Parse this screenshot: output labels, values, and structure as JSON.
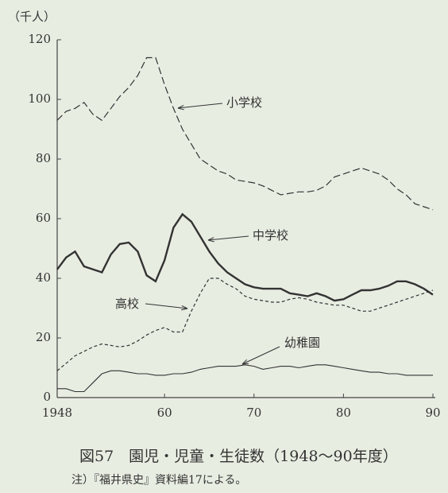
{
  "chart_data": {
    "type": "line",
    "title": "図57　園児・児童・生徒数（1948〜90年度）",
    "note": "注）『福井県史』資料編17による。",
    "y_label": "（千人）",
    "x": [
      1948,
      1949,
      1950,
      1951,
      1952,
      1953,
      1954,
      1955,
      1956,
      1957,
      1958,
      1959,
      1960,
      1961,
      1962,
      1963,
      1964,
      1965,
      1966,
      1967,
      1968,
      1969,
      1970,
      1971,
      1972,
      1973,
      1974,
      1975,
      1976,
      1977,
      1978,
      1979,
      1980,
      1981,
      1982,
      1983,
      1984,
      1985,
      1986,
      1987,
      1988,
      1989,
      1990
    ],
    "xlim": [
      1948,
      1990
    ],
    "xticks": [
      1948,
      {
        "value": 1960,
        "label": "60"
      },
      {
        "value": 1970,
        "label": "70"
      },
      {
        "value": 1980,
        "label": "80"
      },
      {
        "value": 1990,
        "label": "90"
      }
    ],
    "ylim": [
      0,
      120
    ],
    "yticks": [
      0,
      20,
      40,
      60,
      80,
      100,
      120
    ],
    "series": [
      {
        "name": "小学校",
        "color": "#333333",
        "dash": "9 4",
        "width": 1.2,
        "values": [
          93,
          96,
          97,
          99,
          95,
          93,
          97,
          101,
          104,
          108,
          114,
          114,
          105,
          97,
          90,
          85,
          80,
          78,
          76,
          75,
          73,
          72.5,
          72,
          71,
          69.5,
          68,
          68.5,
          69,
          69,
          69.5,
          71,
          74,
          75,
          76,
          77,
          76,
          75,
          73,
          70,
          68,
          65,
          64,
          63
        ]
      },
      {
        "name": "中学校",
        "color": "#333333",
        "dash": "none",
        "width": 2.4,
        "values": [
          43,
          47,
          49,
          44,
          43,
          42,
          48,
          51.5,
          52,
          49,
          41,
          39,
          46,
          57,
          61.5,
          59,
          54,
          49,
          45,
          42,
          40,
          38,
          37,
          36.5,
          36.5,
          36.5,
          35,
          34.5,
          34,
          35,
          34,
          32.5,
          33,
          34.5,
          36,
          36,
          36.5,
          37.5,
          39,
          39,
          38,
          36.5,
          34.5
        ]
      },
      {
        "name": "高校",
        "color": "#333333",
        "dash": "4 3",
        "width": 1.2,
        "values": [
          9,
          11.5,
          14,
          15.5,
          17,
          18,
          17.5,
          17,
          17.5,
          19,
          21,
          22.5,
          23.5,
          22,
          22,
          29,
          35,
          40,
          40,
          38,
          36.5,
          34,
          33,
          32.5,
          32,
          32,
          33,
          33.5,
          33,
          32,
          31.5,
          31,
          31,
          30,
          29,
          29,
          30,
          31,
          32,
          33,
          34,
          35,
          36
        ]
      },
      {
        "name": "幼稚園",
        "color": "#333333",
        "dash": "none",
        "width": 1.1,
        "values": [
          3,
          3,
          2,
          2,
          5,
          8,
          9,
          9,
          8.5,
          8,
          8,
          7.5,
          7.5,
          8,
          8,
          8.5,
          9.5,
          10,
          10.5,
          10.5,
          10.5,
          11,
          10.5,
          9.5,
          10,
          10.5,
          10.5,
          10,
          10.5,
          11,
          11,
          10.5,
          10,
          9.5,
          9,
          8.5,
          8.5,
          8,
          8,
          7.5,
          7.5,
          7.5,
          7.5
        ]
      }
    ]
  }
}
